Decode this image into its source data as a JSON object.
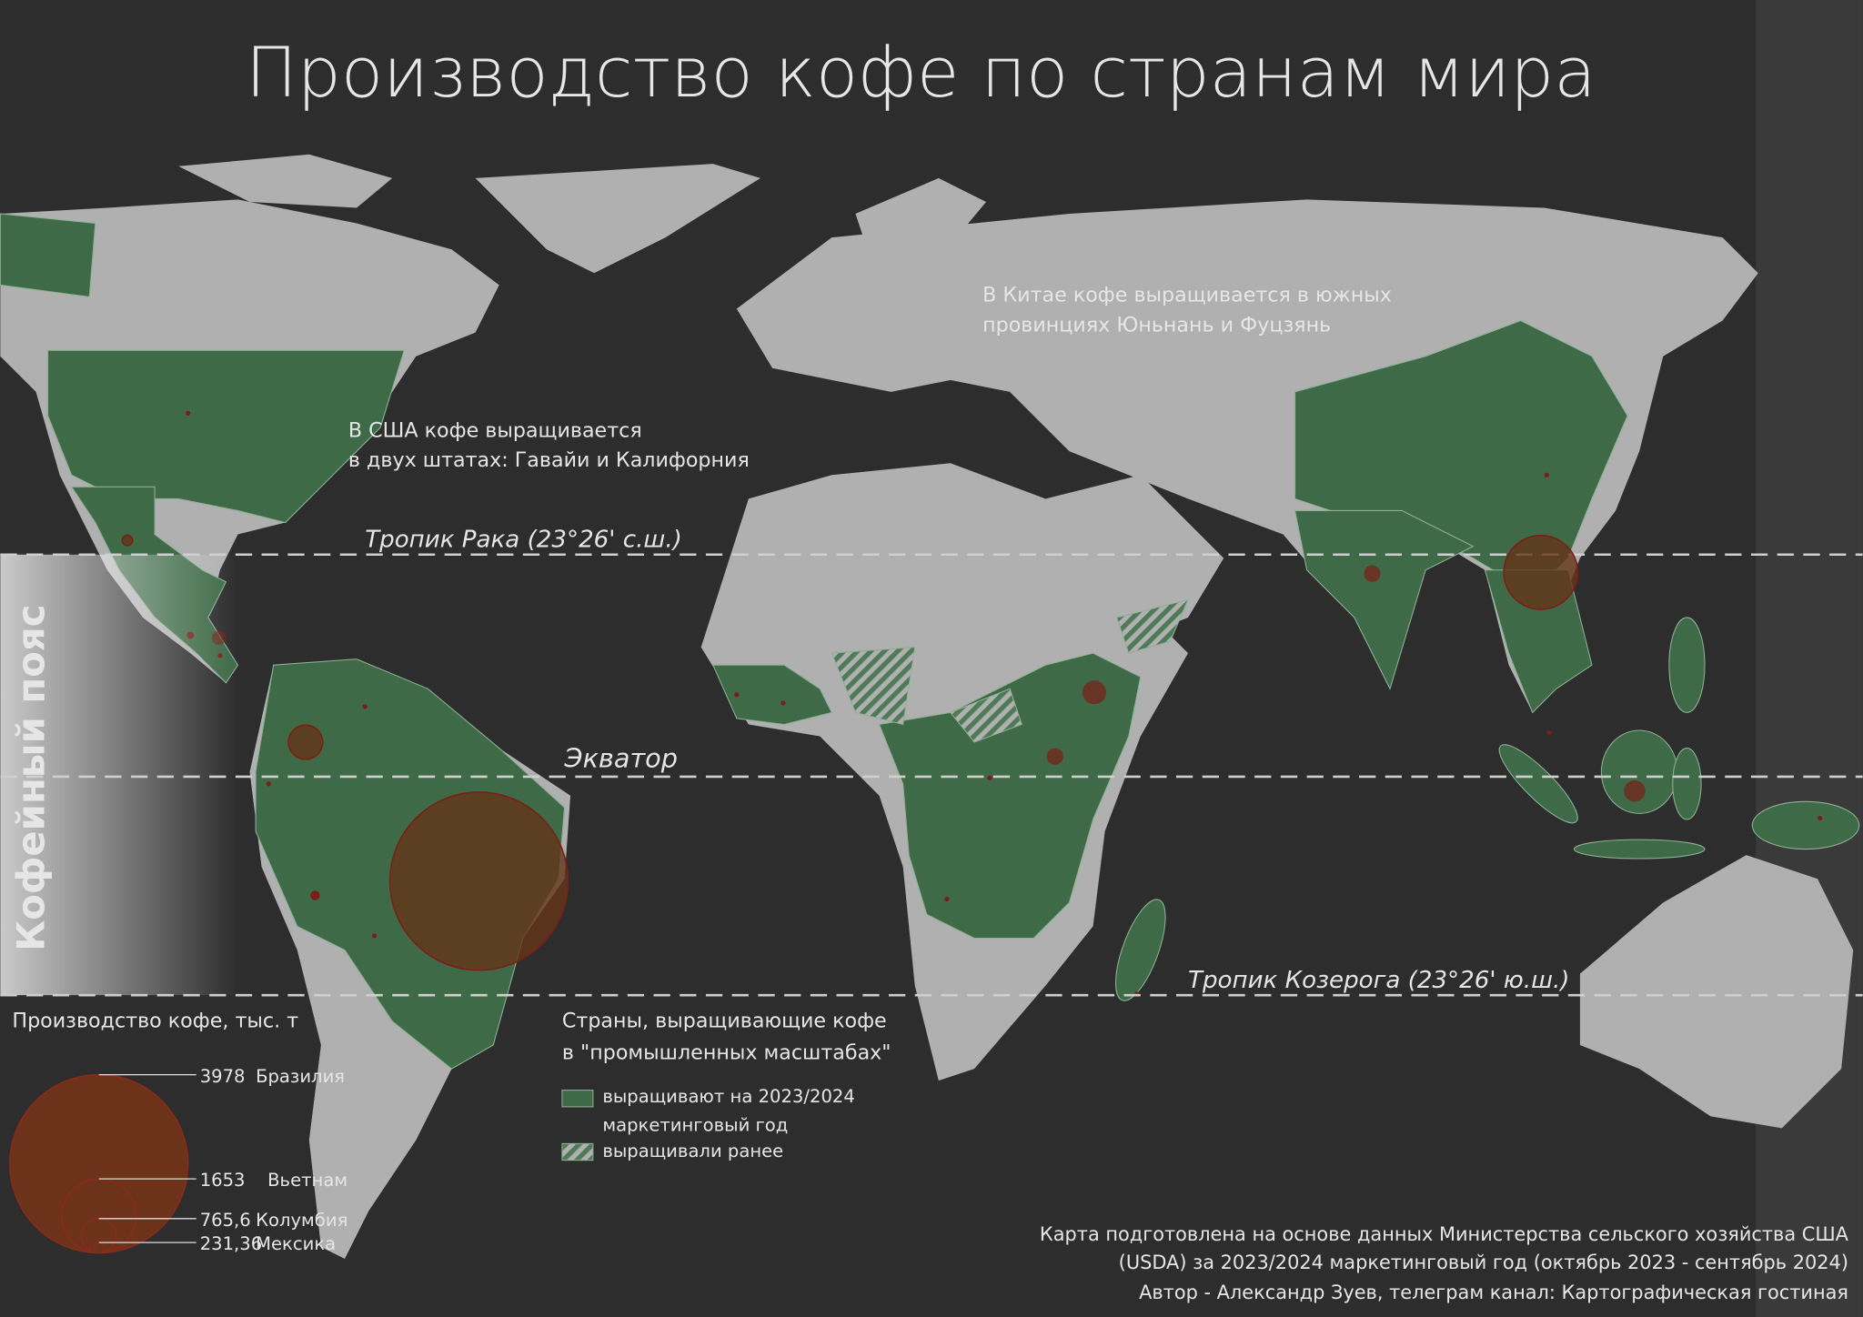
{
  "title": "Производство кофе по странам мира",
  "annotations": {
    "usa": [
      "В США кофе выращивается",
      "в двух штатах: Гавайи и Калифорния"
    ],
    "china": [
      "В Китае кофе выращивается в южных",
      "провинциях Юньнань и Фуцзянь"
    ]
  },
  "lines": {
    "cancer": "Тропик Рака (23°26' с.ш.)",
    "equator": "Экватор",
    "capricorn": "Тропик Козерога (23°26' ю.ш.)"
  },
  "belt": "Кофейный пояс",
  "size_legend": {
    "title": "Производство кофе, тыс. т",
    "items": [
      {
        "value": 3978,
        "label": "3978",
        "country": "Бразилия"
      },
      {
        "value": 1653,
        "label": "1653",
        "country": "Вьетнам"
      },
      {
        "value": 765.6,
        "label": "765,6",
        "country": "Колумбия"
      },
      {
        "value": 231.36,
        "label": "231,36",
        "country": "Мексика"
      }
    ]
  },
  "color_legend": {
    "title": [
      "Страны, выращивающие кофе",
      "в \"промышленных масштабах\""
    ],
    "items": [
      {
        "label": [
          "выращивают на 2023/2024",
          "маркетинговый год"
        ]
      },
      {
        "label": [
          "выращивали ранее"
        ]
      }
    ]
  },
  "source": [
    "Карта подготовлена на основе данных Министерства сельского хозяйства США",
    "(USDA) за 2023/2024 маркетинговый год (октябрь 2023 - сентябрь 2024)",
    "Автор - Александр Зуев, телеграм канал: Картографическая гостиная"
  ]
}
